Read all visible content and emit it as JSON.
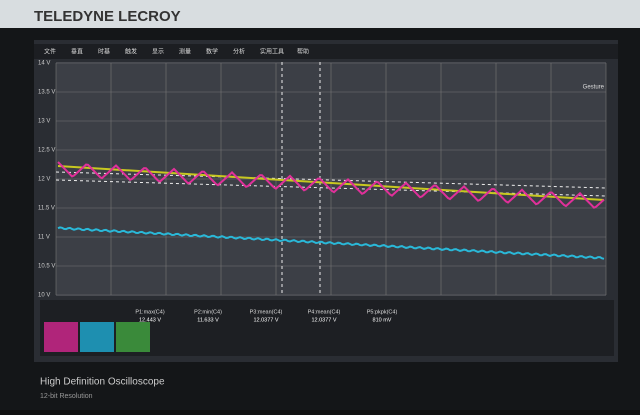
{
  "brand": "TELEDYNE LECROY",
  "menu": [
    "文件",
    "垂直",
    "时基",
    "触发",
    "显示",
    "测量",
    "数学",
    "分析",
    "实用工具",
    "帮助"
  ],
  "corner_label": "Gesture",
  "y_labels": [
    "14 V",
    "13.5 V",
    "13 V",
    "12.5 V",
    "12 V",
    "11.5 V",
    "11 V",
    "10.5 V",
    "10 V"
  ],
  "measurements": [
    {
      "name": "P1:max(C4)",
      "value": "12.443 V"
    },
    {
      "name": "P2:min(C4)",
      "value": "11.633 V"
    },
    {
      "name": "P3:mean(C4)",
      "value": "12.0377 V"
    },
    {
      "name": "P4:mean(C4)",
      "value": "12.0377 V"
    },
    {
      "name": "P5:pkpk(C4)",
      "value": "810 mV"
    }
  ],
  "footer": {
    "title": "High Definition Oscilloscope",
    "subtitle": "12-bit Resolution"
  }
}
